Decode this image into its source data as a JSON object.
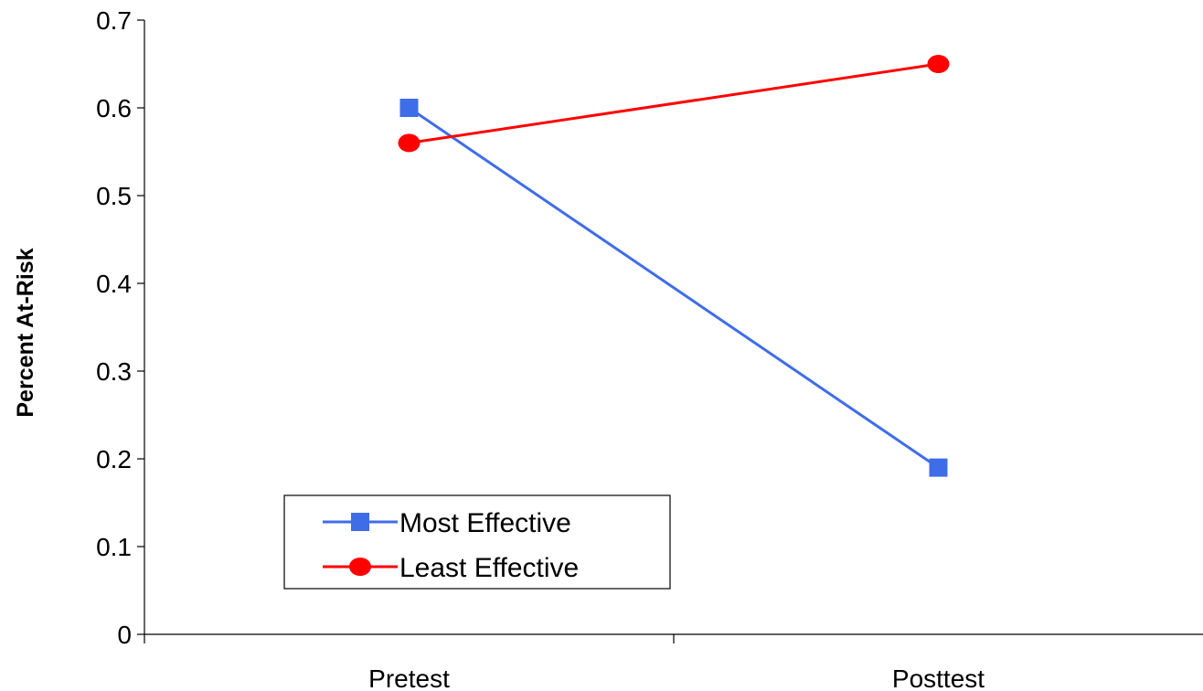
{
  "chart_data": {
    "type": "line",
    "title": "",
    "xlabel": "",
    "ylabel": "Percent At-Risk",
    "categories": [
      "Pretest",
      "Posttest"
    ],
    "ylim": [
      0,
      0.7
    ],
    "yticks": [
      "0",
      "0.1",
      "0.2",
      "0.3",
      "0.4",
      "0.5",
      "0.6",
      "0.7"
    ],
    "grid": false,
    "legend_position": "bottom-left",
    "series": [
      {
        "name": "Most Effective",
        "values": [
          0.6,
          0.19
        ],
        "color": "#3f6de8",
        "marker": "square"
      },
      {
        "name": "Least Effective",
        "values": [
          0.56,
          0.65
        ],
        "color": "#ff0000",
        "marker": "circle"
      }
    ]
  }
}
